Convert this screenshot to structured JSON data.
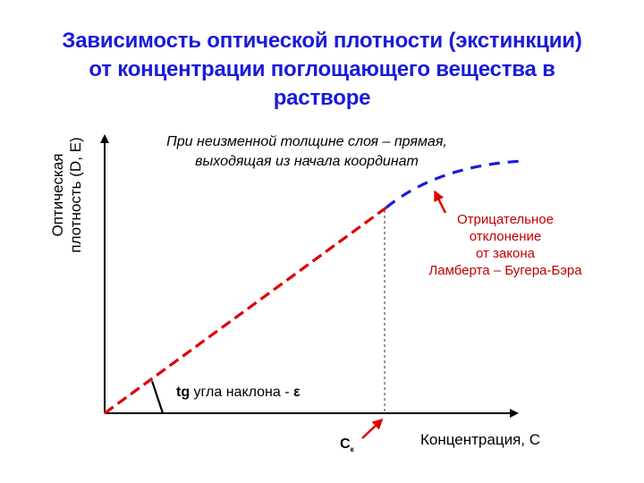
{
  "title": {
    "line1": "Зависимость оптической плотности (экстинкции)",
    "line2": "от концентрации поглощающего вещества в",
    "line3": "растворе"
  },
  "axes": {
    "y_label_line1": "Оптическая",
    "y_label_line2": "плотность (D, E)",
    "x_label": "Концентрация, С"
  },
  "notes": {
    "linear_line1": "При неизменной толщине слоя – прямая,",
    "linear_line2": "выходящая из начала координат",
    "deviation_line1": "Отрицательное",
    "deviation_line2": "отклонение",
    "deviation_line3": "от закона",
    "deviation_line4": "Ламберта – Бугера-Бэра",
    "slope_bold": "tg",
    "slope_text": " угла наклона - ",
    "slope_symbol": "ε",
    "ck_main": "C",
    "ck_sub": "к"
  },
  "colors": {
    "title": "#1a1adc",
    "linear": "#e00000",
    "curve": "#1a1adc",
    "deviation": "#c00000"
  }
}
